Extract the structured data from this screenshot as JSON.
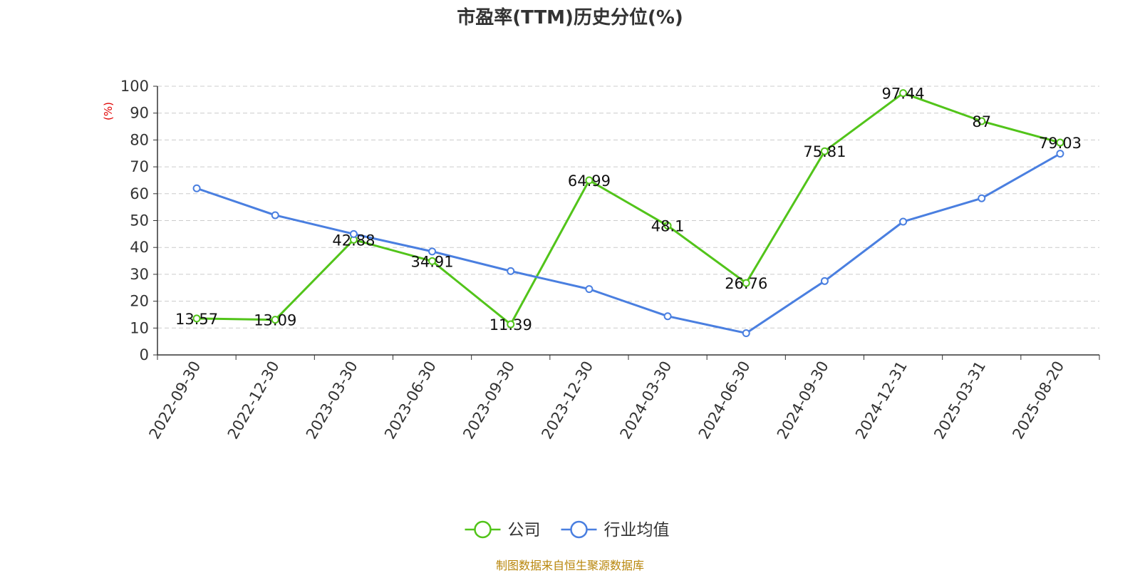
{
  "chart_data": {
    "type": "line",
    "title": "市盈率(TTM)历史分位(%)",
    "ylabel": "(%)",
    "xlabel": "",
    "ylim": [
      0,
      100
    ],
    "yticks": [
      0,
      10,
      20,
      30,
      40,
      50,
      60,
      70,
      80,
      90,
      100
    ],
    "grid": true,
    "legend_position": "bottom-center",
    "categories": [
      "2022-09-30",
      "2022-12-30",
      "2023-03-30",
      "2023-06-30",
      "2023-09-30",
      "2023-12-30",
      "2024-03-30",
      "2024-06-30",
      "2024-09-30",
      "2024-12-31",
      "2025-03-31",
      "2025-08-20"
    ],
    "series": [
      {
        "name": "公司",
        "color": "#52c41a",
        "show_labels": true,
        "values": [
          13.57,
          13.09,
          42.88,
          34.91,
          11.39,
          64.99,
          48.1,
          26.76,
          75.81,
          97.44,
          87,
          79.03
        ]
      },
      {
        "name": "行业均值",
        "color": "#4a7fe0",
        "show_labels": false,
        "values": [
          62,
          52,
          45,
          38.5,
          31.2,
          24.5,
          14.4,
          8.1,
          27.5,
          49.6,
          58.3,
          74.9
        ]
      }
    ]
  },
  "source_note": "制图数据来自恒生聚源数据库"
}
